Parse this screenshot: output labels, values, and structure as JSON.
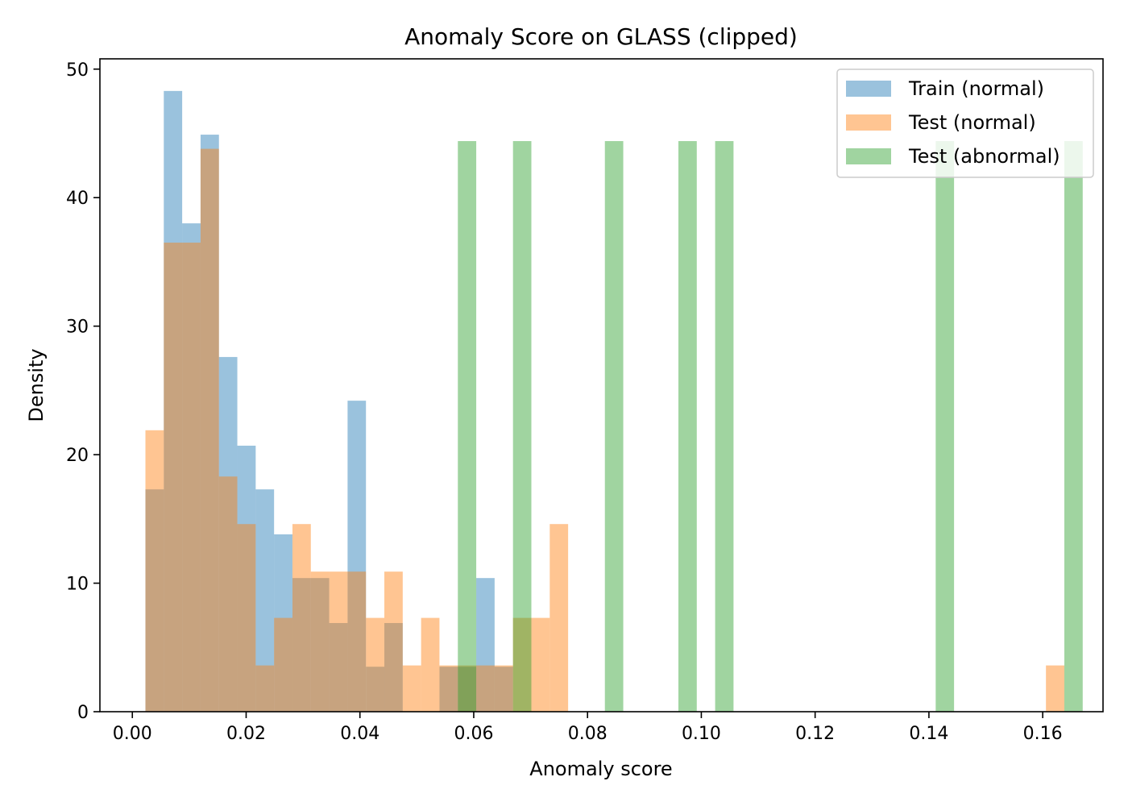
{
  "chart_data": {
    "type": "bar",
    "title": "Anomaly Score on GLASS (clipped)",
    "xlabel": "Anomaly score",
    "ylabel": "Density",
    "xlim": [
      -0.0057,
      0.1706
    ],
    "ylim": [
      0,
      50.8
    ],
    "xticks": [
      0.0,
      0.02,
      0.04,
      0.06,
      0.08,
      0.1,
      0.12,
      0.14,
      0.16
    ],
    "xtick_labels": [
      "0.00",
      "0.02",
      "0.04",
      "0.06",
      "0.08",
      "0.10",
      "0.12",
      "0.14",
      "0.16"
    ],
    "yticks": [
      0,
      10,
      20,
      30,
      40,
      50
    ],
    "ytick_labels": [
      "0",
      "10",
      "20",
      "30",
      "40",
      "50"
    ],
    "bin_start": 0.0023,
    "bin_width": 0.00323,
    "grid": false,
    "legend_position": "top-right",
    "series": [
      {
        "name": "Train (normal)",
        "color": "#1f77b4",
        "alpha": 0.45,
        "values": [
          17.3,
          48.3,
          38.0,
          44.9,
          27.6,
          20.7,
          17.3,
          13.8,
          10.4,
          10.4,
          6.9,
          24.2,
          3.5,
          6.9,
          0,
          0,
          3.5,
          3.5,
          10.4,
          3.5
        ]
      },
      {
        "name": "Test (normal)",
        "color": "#ff7f0e",
        "alpha": 0.45,
        "values": [
          21.9,
          36.5,
          36.5,
          43.8,
          18.3,
          14.6,
          3.6,
          7.3,
          14.6,
          10.9,
          10.9,
          10.9,
          7.3,
          10.9,
          3.6,
          7.3,
          3.6,
          3.6,
          3.6,
          3.6,
          7.3,
          7.3,
          14.6,
          0,
          0,
          0,
          0,
          0,
          0,
          0,
          0,
          0,
          0,
          0,
          0,
          0,
          0,
          0,
          0,
          0,
          0,
          0,
          0,
          0,
          0,
          0,
          0,
          0,
          0,
          3.6,
          0
        ]
      },
      {
        "name": "Test (abnormal)",
        "color": "#2ca02c",
        "alpha": 0.45,
        "values": [
          0,
          0,
          0,
          0,
          0,
          0,
          0,
          0,
          0,
          0,
          0,
          0,
          0,
          0,
          0,
          0,
          0,
          44.4,
          0,
          0,
          44.4,
          0,
          0,
          0,
          0,
          44.4,
          0,
          0,
          0,
          44.4,
          0,
          44.4,
          0,
          0,
          0,
          0,
          0,
          0,
          0,
          0,
          0,
          0,
          0,
          44.4,
          0,
          0,
          0,
          0,
          0,
          0,
          44.4
        ]
      }
    ]
  }
}
